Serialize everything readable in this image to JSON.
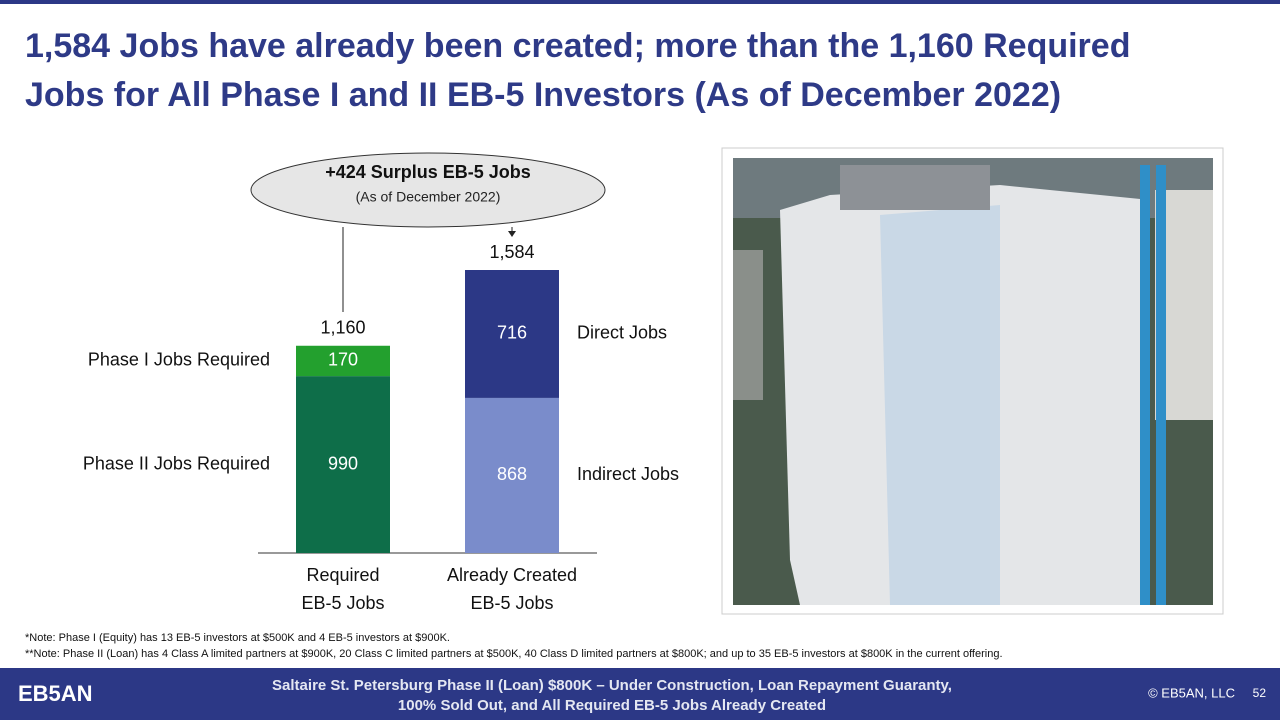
{
  "header": {
    "title": "1,584 Jobs have already been created; more than the 1,160 Required\nJobs for All Phase I and II EB-5 Investors (As of December 2022)"
  },
  "chart_data": {
    "type": "stacked_bar",
    "categories": [
      "Required\nEB-5 Jobs",
      "Already Created\nEB-5 Jobs"
    ],
    "series": [
      {
        "name": "Phase II Jobs Required",
        "color": "#0e6e49",
        "values": [
          990,
          null
        ]
      },
      {
        "name": "Phase I Jobs Required",
        "color": "#23a02e",
        "values": [
          170,
          null
        ]
      },
      {
        "name": "Indirect Jobs",
        "color": "#7a8ccb",
        "values": [
          null,
          868
        ]
      },
      {
        "name": "Direct Jobs",
        "color": "#2c3886",
        "values": [
          null,
          716
        ]
      }
    ],
    "totals": [
      1160,
      1584
    ],
    "total_labels": [
      "1,160",
      "1,584"
    ],
    "annotation": {
      "title": "+424 Surplus EB-5 Jobs",
      "subtitle": "(As of December 2022)"
    }
  },
  "notes": [
    "*Note: Phase I (Equity) has 13 EB-5 investors at $500K and 4 EB-5 investors at $900K.",
    "**Note: Phase II (Loan) has 4 Class A limited partners at $900K, 20 Class C limited partners at $500K, 40 Class D limited partners at $800K; and up to 35 EB-5 investors at $800K in the current offering."
  ],
  "footer": {
    "logo": "EB5AN",
    "text": "Saltaire St. Petersburg Phase II (Loan) $800K – Under Construction, Loan Repayment Guaranty,\n100% Sold Out, and All Required EB-5 Jobs Already Created",
    "copyright": "© EB5AN, LLC",
    "page": "52"
  }
}
